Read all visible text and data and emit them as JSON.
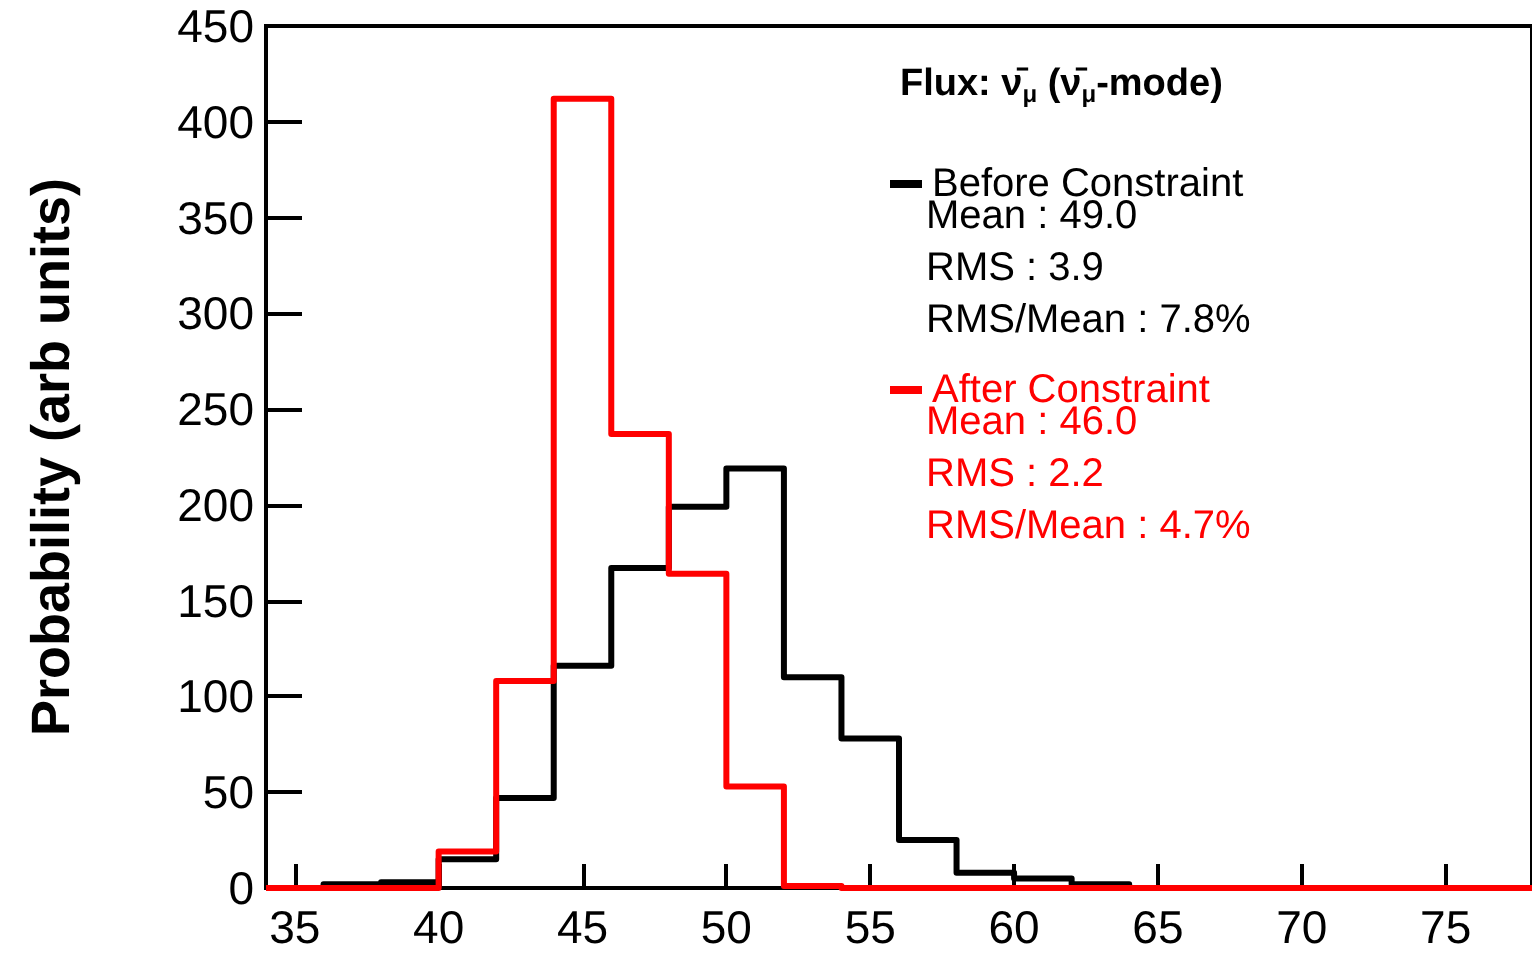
{
  "chart_data": {
    "type": "histogram",
    "title": "Flux: ν̄$_{μ}$ (ν̄$_{μ}$-mode)",
    "ylabel": "Probability (arb units)",
    "bins": [
      34,
      36,
      38,
      40,
      42,
      44,
      46,
      48,
      50,
      52,
      54,
      56,
      58,
      60,
      62,
      64,
      66,
      68,
      70,
      72,
      74,
      76,
      78
    ],
    "series": [
      {
        "name": "Before Constraint",
        "color": "#000000",
        "values": [
          0,
          2,
          3,
          15,
          47,
          116,
          167,
          199,
          219,
          110,
          78,
          25,
          8,
          5,
          2,
          0,
          0,
          0,
          0,
          0,
          0,
          0
        ]
      },
      {
        "name": "After Constraint",
        "color": "#ff0000",
        "values": [
          0,
          0,
          0,
          19,
          108,
          412,
          237,
          164,
          53,
          1,
          0,
          0,
          0,
          0,
          0,
          0,
          0,
          0,
          0,
          0,
          0,
          0
        ]
      }
    ],
    "annotations": [
      "Mean : 49.0",
      "RMS : 3.9",
      "RMS/Mean : 7.8%",
      "Mean : 46.0",
      "RMS : 2.2",
      "RMS/Mean : 4.7%"
    ],
    "xlim": [
      34,
      78
    ],
    "xticks": [
      35,
      40,
      45,
      50,
      55,
      60,
      65,
      70,
      75
    ],
    "ylim": [
      0,
      450
    ],
    "yticks": [
      0,
      50,
      100,
      150,
      200,
      250,
      300,
      350,
      400,
      450
    ],
    "legend": "top right",
    "grid": false
  }
}
